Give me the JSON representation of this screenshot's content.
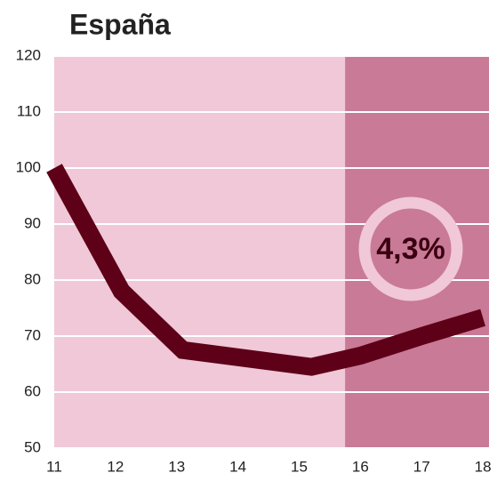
{
  "chart_data": {
    "type": "line",
    "title": "España",
    "x": [
      11,
      12.1,
      13.1,
      15.2,
      16,
      17,
      18
    ],
    "series": [
      {
        "color": "#5e0018",
        "values": [
          100,
          78,
          67.5,
          64.5,
          66.5,
          70,
          73.3
        ]
      }
    ],
    "xlim": [
      11,
      18.1
    ],
    "xticks": [
      11,
      12,
      13,
      14,
      15,
      16,
      17,
      18
    ],
    "ylim": [
      50,
      120
    ],
    "yticks": [
      50,
      60,
      70,
      80,
      90,
      100,
      110,
      120
    ],
    "grid": true,
    "shaded_xrange": [
      15.75,
      18.1
    ],
    "background_color": "#f0c8d8",
    "shade_color": "#c97a96",
    "annotation": "4,3%"
  }
}
